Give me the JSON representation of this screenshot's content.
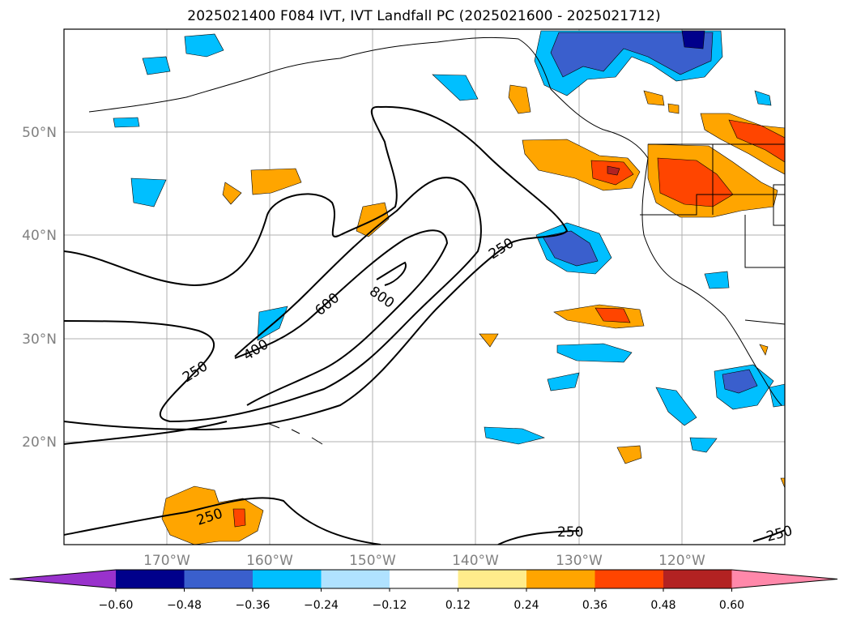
{
  "title": "2025021400 F084 IVT, IVT Landfall PC (2025021600 - 2025021712)",
  "map": {
    "lon_range": [
      -180,
      -110
    ],
    "lat_range": [
      10,
      60
    ],
    "lon_labels": [
      "170°W",
      "160°W",
      "150°W",
      "140°W",
      "130°W",
      "120°W"
    ],
    "lat_labels": [
      "50°N",
      "40°N",
      "30°N",
      "20°N"
    ],
    "gridlines": true,
    "contour_labels": [
      "250",
      "400",
      "600",
      "800",
      "250",
      "250",
      "250",
      "250"
    ]
  },
  "colorbar": {
    "orientation": "horizontal",
    "extend": "both",
    "colors": [
      "#9932cc",
      "#00008b",
      "#3a5fcd",
      "#00bfff",
      "#b0e2ff",
      "#ffffff",
      "#ffec8b",
      "#ffa500",
      "#ff4500",
      "#b22222",
      "#ff88aa"
    ],
    "tick_labels": [
      "−0.60",
      "−0.48",
      "−0.36",
      "−0.24",
      "−0.12",
      "0.12",
      "0.24",
      "0.36",
      "0.48",
      "0.60"
    ]
  }
}
